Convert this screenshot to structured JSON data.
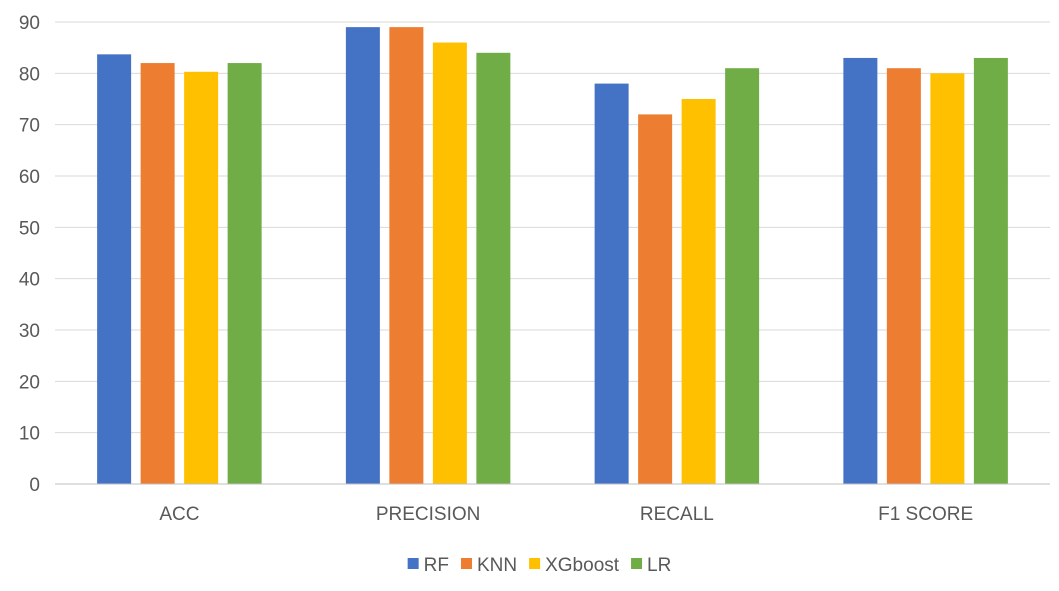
{
  "chart_data": {
    "type": "bar",
    "title": "",
    "xlabel": "",
    "ylabel": "",
    "ylim": [
      0,
      90
    ],
    "yticks": [
      0,
      10,
      20,
      30,
      40,
      50,
      60,
      70,
      80,
      90
    ],
    "grid": true,
    "legend_position": "bottom",
    "categories": [
      "ACC",
      "PRECISION",
      "RECALL",
      "F1 SCORE"
    ],
    "series": [
      {
        "name": "RF",
        "color": "#4472c4",
        "values": [
          83.7,
          89,
          78,
          83
        ]
      },
      {
        "name": "KNN",
        "color": "#ed7d31",
        "values": [
          82,
          89,
          72,
          81
        ]
      },
      {
        "name": "XGboost",
        "color": "#ffc000",
        "values": [
          80.3,
          86,
          75,
          80
        ]
      },
      {
        "name": "LR",
        "color": "#70ad47",
        "values": [
          82,
          84,
          81,
          83
        ]
      }
    ]
  }
}
